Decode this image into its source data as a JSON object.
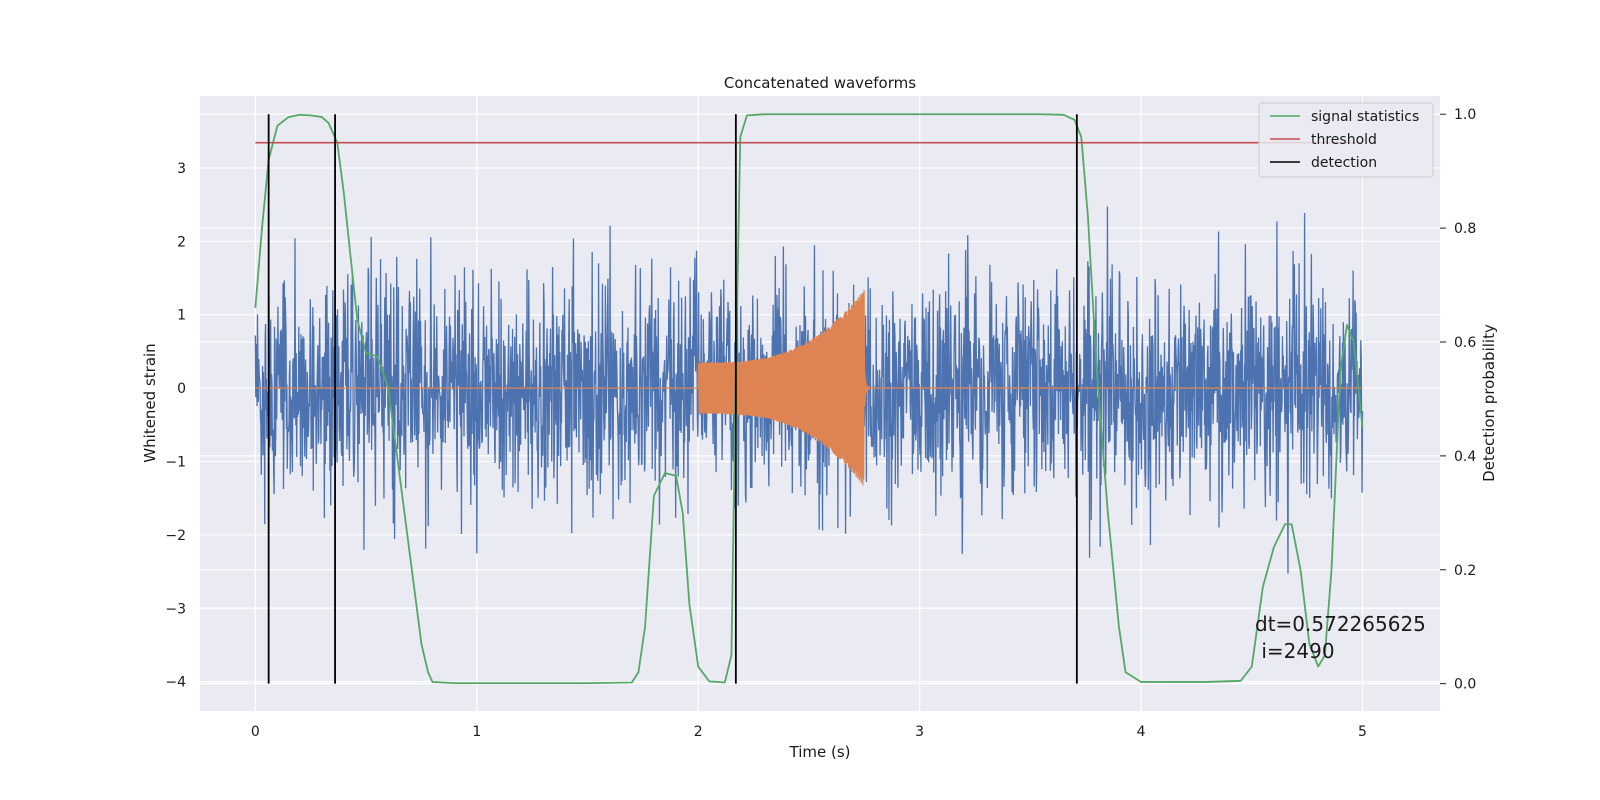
{
  "chart_data": {
    "type": "line",
    "title": "Concatenated waveforms",
    "xlabel": "Time (s)",
    "ylabel": "Whitened strain",
    "ylabel_right": "Detection probability",
    "xlim": [
      -0.25,
      5.35
    ],
    "ylim": [
      -4.4,
      3.98
    ],
    "ylim_right": [
      -0.048,
      1.032
    ],
    "xticks": [
      0,
      1,
      2,
      3,
      4,
      5
    ],
    "xtick_labels": [
      "0",
      "1",
      "2",
      "3",
      "4",
      "5"
    ],
    "yticks": [
      -4,
      -3,
      -2,
      -1,
      0,
      1,
      2,
      3
    ],
    "ytick_labels": [
      "−4",
      "−3",
      "−2",
      "−1",
      "0",
      "1",
      "2",
      "3"
    ],
    "yticks_right": [
      0.0,
      0.2,
      0.4,
      0.6,
      0.8,
      1.0
    ],
    "ytick_right_labels": [
      "0.0",
      "0.2",
      "0.4",
      "0.6",
      "0.8",
      "1.0"
    ],
    "grid": true,
    "legend_position": "top-right",
    "annotation": {
      "line1": "dt=0.572265625",
      "line2": " i=2490",
      "x": 4.5,
      "y": -3.55
    },
    "series": [
      {
        "name": "whitened strain (noise)",
        "axis": "left",
        "color": "#4c72b0",
        "x_range": [
          0,
          5
        ],
        "typical_amplitude": 0.75,
        "peak_min": -4.0,
        "peak_max": 3.6
      },
      {
        "name": "injected waveform",
        "axis": "left",
        "color": "#dd8452",
        "x_range": [
          0,
          5
        ],
        "active_range": [
          2.0,
          2.75
        ],
        "amplitude_start": 0.35,
        "amplitude_peak": 1.35
      },
      {
        "name": "signal statistics",
        "axis": "right",
        "color": "#55a868",
        "x": [
          0,
          0.03,
          0.06,
          0.1,
          0.15,
          0.2,
          0.25,
          0.3,
          0.33,
          0.37,
          0.4,
          0.43,
          0.46,
          0.5,
          0.55,
          0.6,
          0.65,
          0.7,
          0.75,
          0.78,
          0.8,
          0.9,
          1.2,
          1.5,
          1.7,
          1.73,
          1.76,
          1.8,
          1.85,
          1.9,
          1.93,
          1.96,
          2.0,
          2.05,
          2.12,
          2.15,
          2.17,
          2.19,
          2.22,
          2.3,
          3.0,
          3.55,
          3.65,
          3.7,
          3.73,
          3.76,
          3.8,
          3.85,
          3.9,
          3.93,
          4.0,
          4.3,
          4.45,
          4.5,
          4.55,
          4.6,
          4.65,
          4.68,
          4.72,
          4.76,
          4.8,
          4.83,
          4.86,
          4.9,
          4.93,
          4.96,
          5.0
        ],
        "y": [
          0.66,
          0.8,
          0.92,
          0.98,
          0.995,
          0.999,
          0.998,
          0.995,
          0.985,
          0.95,
          0.86,
          0.75,
          0.64,
          0.58,
          0.575,
          0.52,
          0.37,
          0.22,
          0.07,
          0.02,
          0.003,
          0.001,
          0.001,
          0.001,
          0.002,
          0.02,
          0.1,
          0.33,
          0.37,
          0.365,
          0.3,
          0.14,
          0.03,
          0.004,
          0.002,
          0.05,
          0.55,
          0.96,
          0.998,
          1.0,
          1.0,
          1.0,
          0.999,
          0.99,
          0.96,
          0.82,
          0.55,
          0.3,
          0.1,
          0.02,
          0.003,
          0.003,
          0.005,
          0.03,
          0.17,
          0.24,
          0.28,
          0.28,
          0.2,
          0.07,
          0.03,
          0.05,
          0.2,
          0.55,
          0.63,
          0.6,
          0.45
        ]
      },
      {
        "name": "threshold",
        "axis": "right",
        "color": "#c44e52",
        "x": [
          0,
          5
        ],
        "y": [
          0.95,
          0.95
        ]
      },
      {
        "name": "detection",
        "axis": "right",
        "color": "#000000",
        "type": "vlines",
        "x": [
          0.06,
          0.36,
          2.17,
          3.71
        ],
        "y_range": [
          0.0,
          1.0
        ]
      }
    ],
    "legend": [
      {
        "label": "signal statistics",
        "color": "#55a868"
      },
      {
        "label": "threshold",
        "color": "#c44e52"
      },
      {
        "label": "detection",
        "color": "#000000"
      }
    ]
  }
}
